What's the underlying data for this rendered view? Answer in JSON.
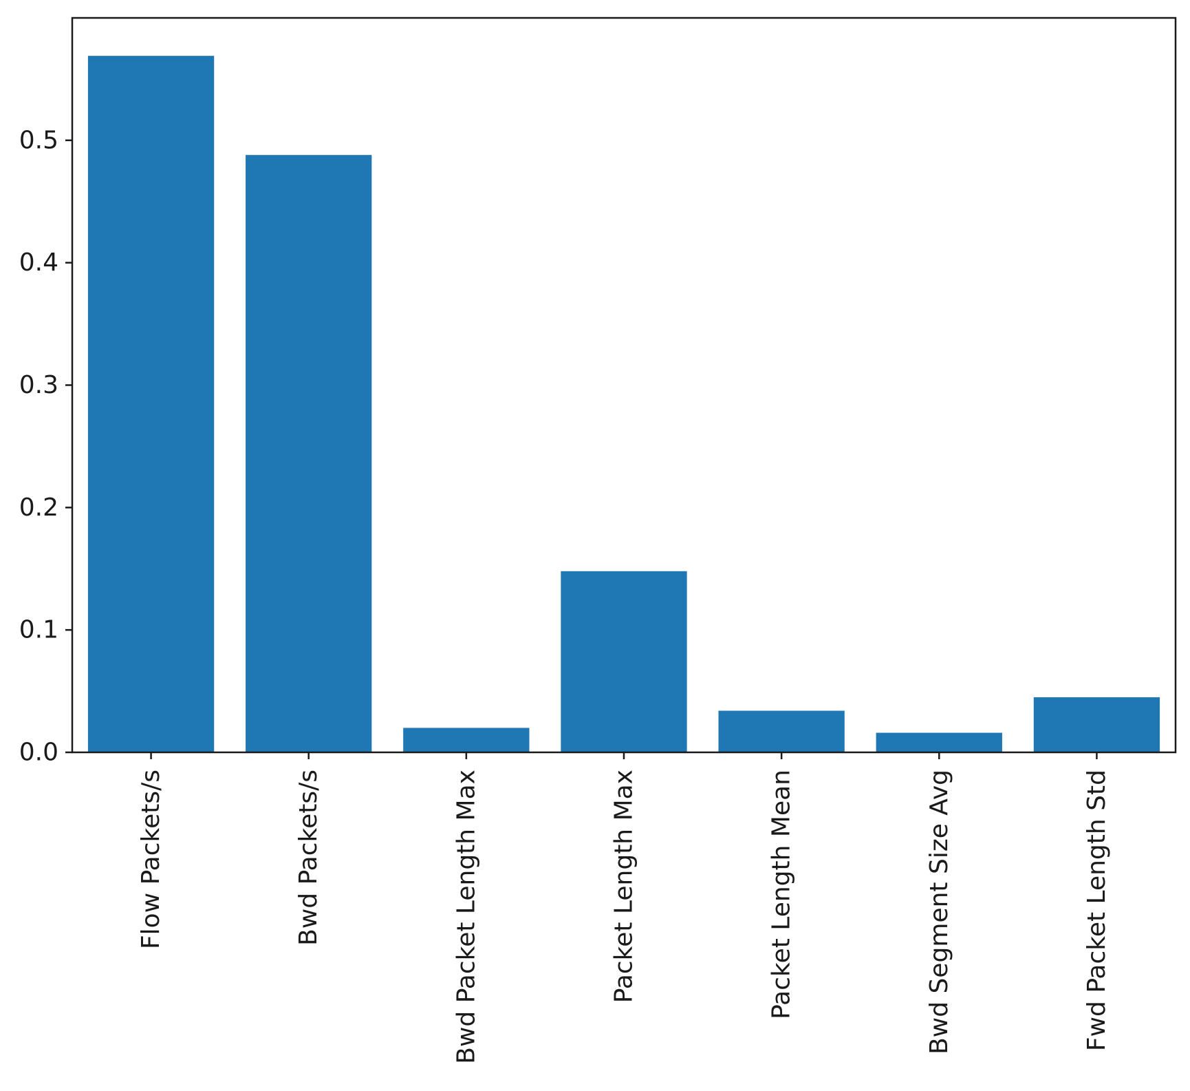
{
  "chart_data": {
    "type": "bar",
    "title": "",
    "xlabel": "",
    "ylabel": "",
    "categories": [
      "Flow Packets/s",
      "Bwd Packets/s",
      "Bwd Packet Length Max",
      "Packet Length Max",
      "Packet Length Mean",
      "Bwd Segment Size Avg",
      "Fwd Packet Length Std"
    ],
    "values": [
      0.569,
      0.488,
      0.02,
      0.148,
      0.034,
      0.016,
      0.045
    ],
    "ylim": [
      0,
      0.6
    ],
    "yticks": [
      0.0,
      0.1,
      0.2,
      0.3,
      0.4,
      0.5
    ],
    "ytick_labels": [
      "0.0",
      "0.1",
      "0.2",
      "0.3",
      "0.4",
      "0.5"
    ],
    "bar_color": "#1f77b4",
    "grid": false,
    "legend": "none"
  }
}
